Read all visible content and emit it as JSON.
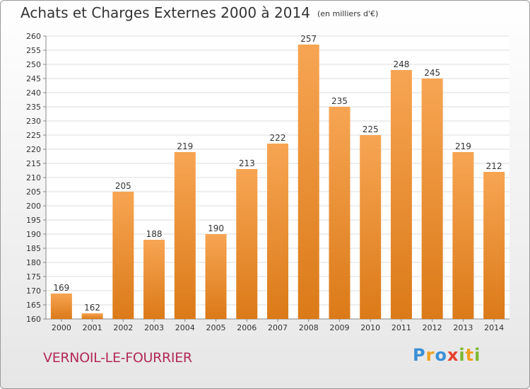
{
  "title": "Achats et Charges Externes 2000 à 2014",
  "unit": "(en milliers d'€)",
  "commune": "VERNOIL-LE-FOURRIER",
  "logo": {
    "letters": [
      {
        "ch": "P",
        "color": "#3a8fd6"
      },
      {
        "ch": "r",
        "color": "#f0a020"
      },
      {
        "ch": "o",
        "color": "#3a8fd6"
      },
      {
        "ch": "x",
        "color": "#e8402a"
      },
      {
        "ch": "i",
        "color": "#7ab82e"
      },
      {
        "ch": "t",
        "color": "#f0a020"
      },
      {
        "ch": "i",
        "color": "#7ab82e"
      }
    ]
  },
  "colors": {
    "bar_light": "#f7a553",
    "bar_dark": "#db7a18",
    "grid": "#dddddd",
    "text": "#333333"
  },
  "chart_data": {
    "type": "bar",
    "categories": [
      "2000",
      "2001",
      "2002",
      "2003",
      "2004",
      "2005",
      "2006",
      "2007",
      "2008",
      "2009",
      "2010",
      "2011",
      "2012",
      "2013",
      "2014"
    ],
    "values": [
      169,
      162,
      205,
      188,
      219,
      190,
      213,
      222,
      257,
      235,
      225,
      248,
      245,
      219,
      212
    ],
    "ylim": [
      160,
      260
    ],
    "yticks": [
      160,
      165,
      170,
      175,
      180,
      185,
      190,
      195,
      200,
      205,
      210,
      215,
      220,
      225,
      230,
      235,
      240,
      245,
      250,
      255,
      260
    ],
    "grid": true,
    "legend": "none"
  }
}
